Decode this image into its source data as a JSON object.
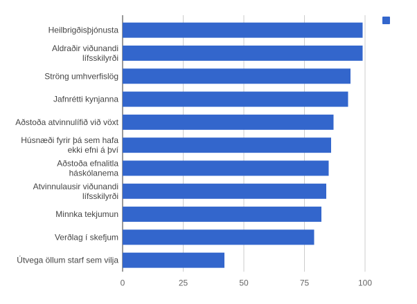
{
  "chart_data": {
    "type": "bar",
    "orientation": "horizontal",
    "title": "",
    "xlabel": "",
    "ylabel": "",
    "categories": [
      [
        "Heilbrigðisþjónusta"
      ],
      [
        "Aldraðir viðunandi",
        "lífsskilyrði"
      ],
      [
        "Ströng umhverfislög"
      ],
      [
        "Jafnrétti kynjanna"
      ],
      [
        "Aðstoða atvinnulífið við vöxt"
      ],
      [
        "Húsnæði fyrir þá sem hafa",
        "ekki efni á því"
      ],
      [
        "Aðstoða efnalitla",
        "háskólanema"
      ],
      [
        "Atvinnulausir viðunandi",
        "lífsskilyrði"
      ],
      [
        "Minnka tekjumun"
      ],
      [
        "Verðlag í skefjum"
      ],
      [
        "Útvega öllum starf sem vilja"
      ]
    ],
    "series": [
      {
        "values": [
          99,
          99,
          94,
          93,
          87,
          86,
          85,
          84,
          82,
          79,
          42
        ]
      }
    ],
    "xlim": [
      0,
      110
    ],
    "xticks": [
      0,
      25,
      50,
      75,
      100
    ],
    "grid": true,
    "legend": {
      "position": "top-right",
      "entries": [
        ""
      ]
    },
    "colors": {
      "bar": "#3366cc",
      "grid": "#cccccc",
      "axis": "#333333"
    }
  }
}
